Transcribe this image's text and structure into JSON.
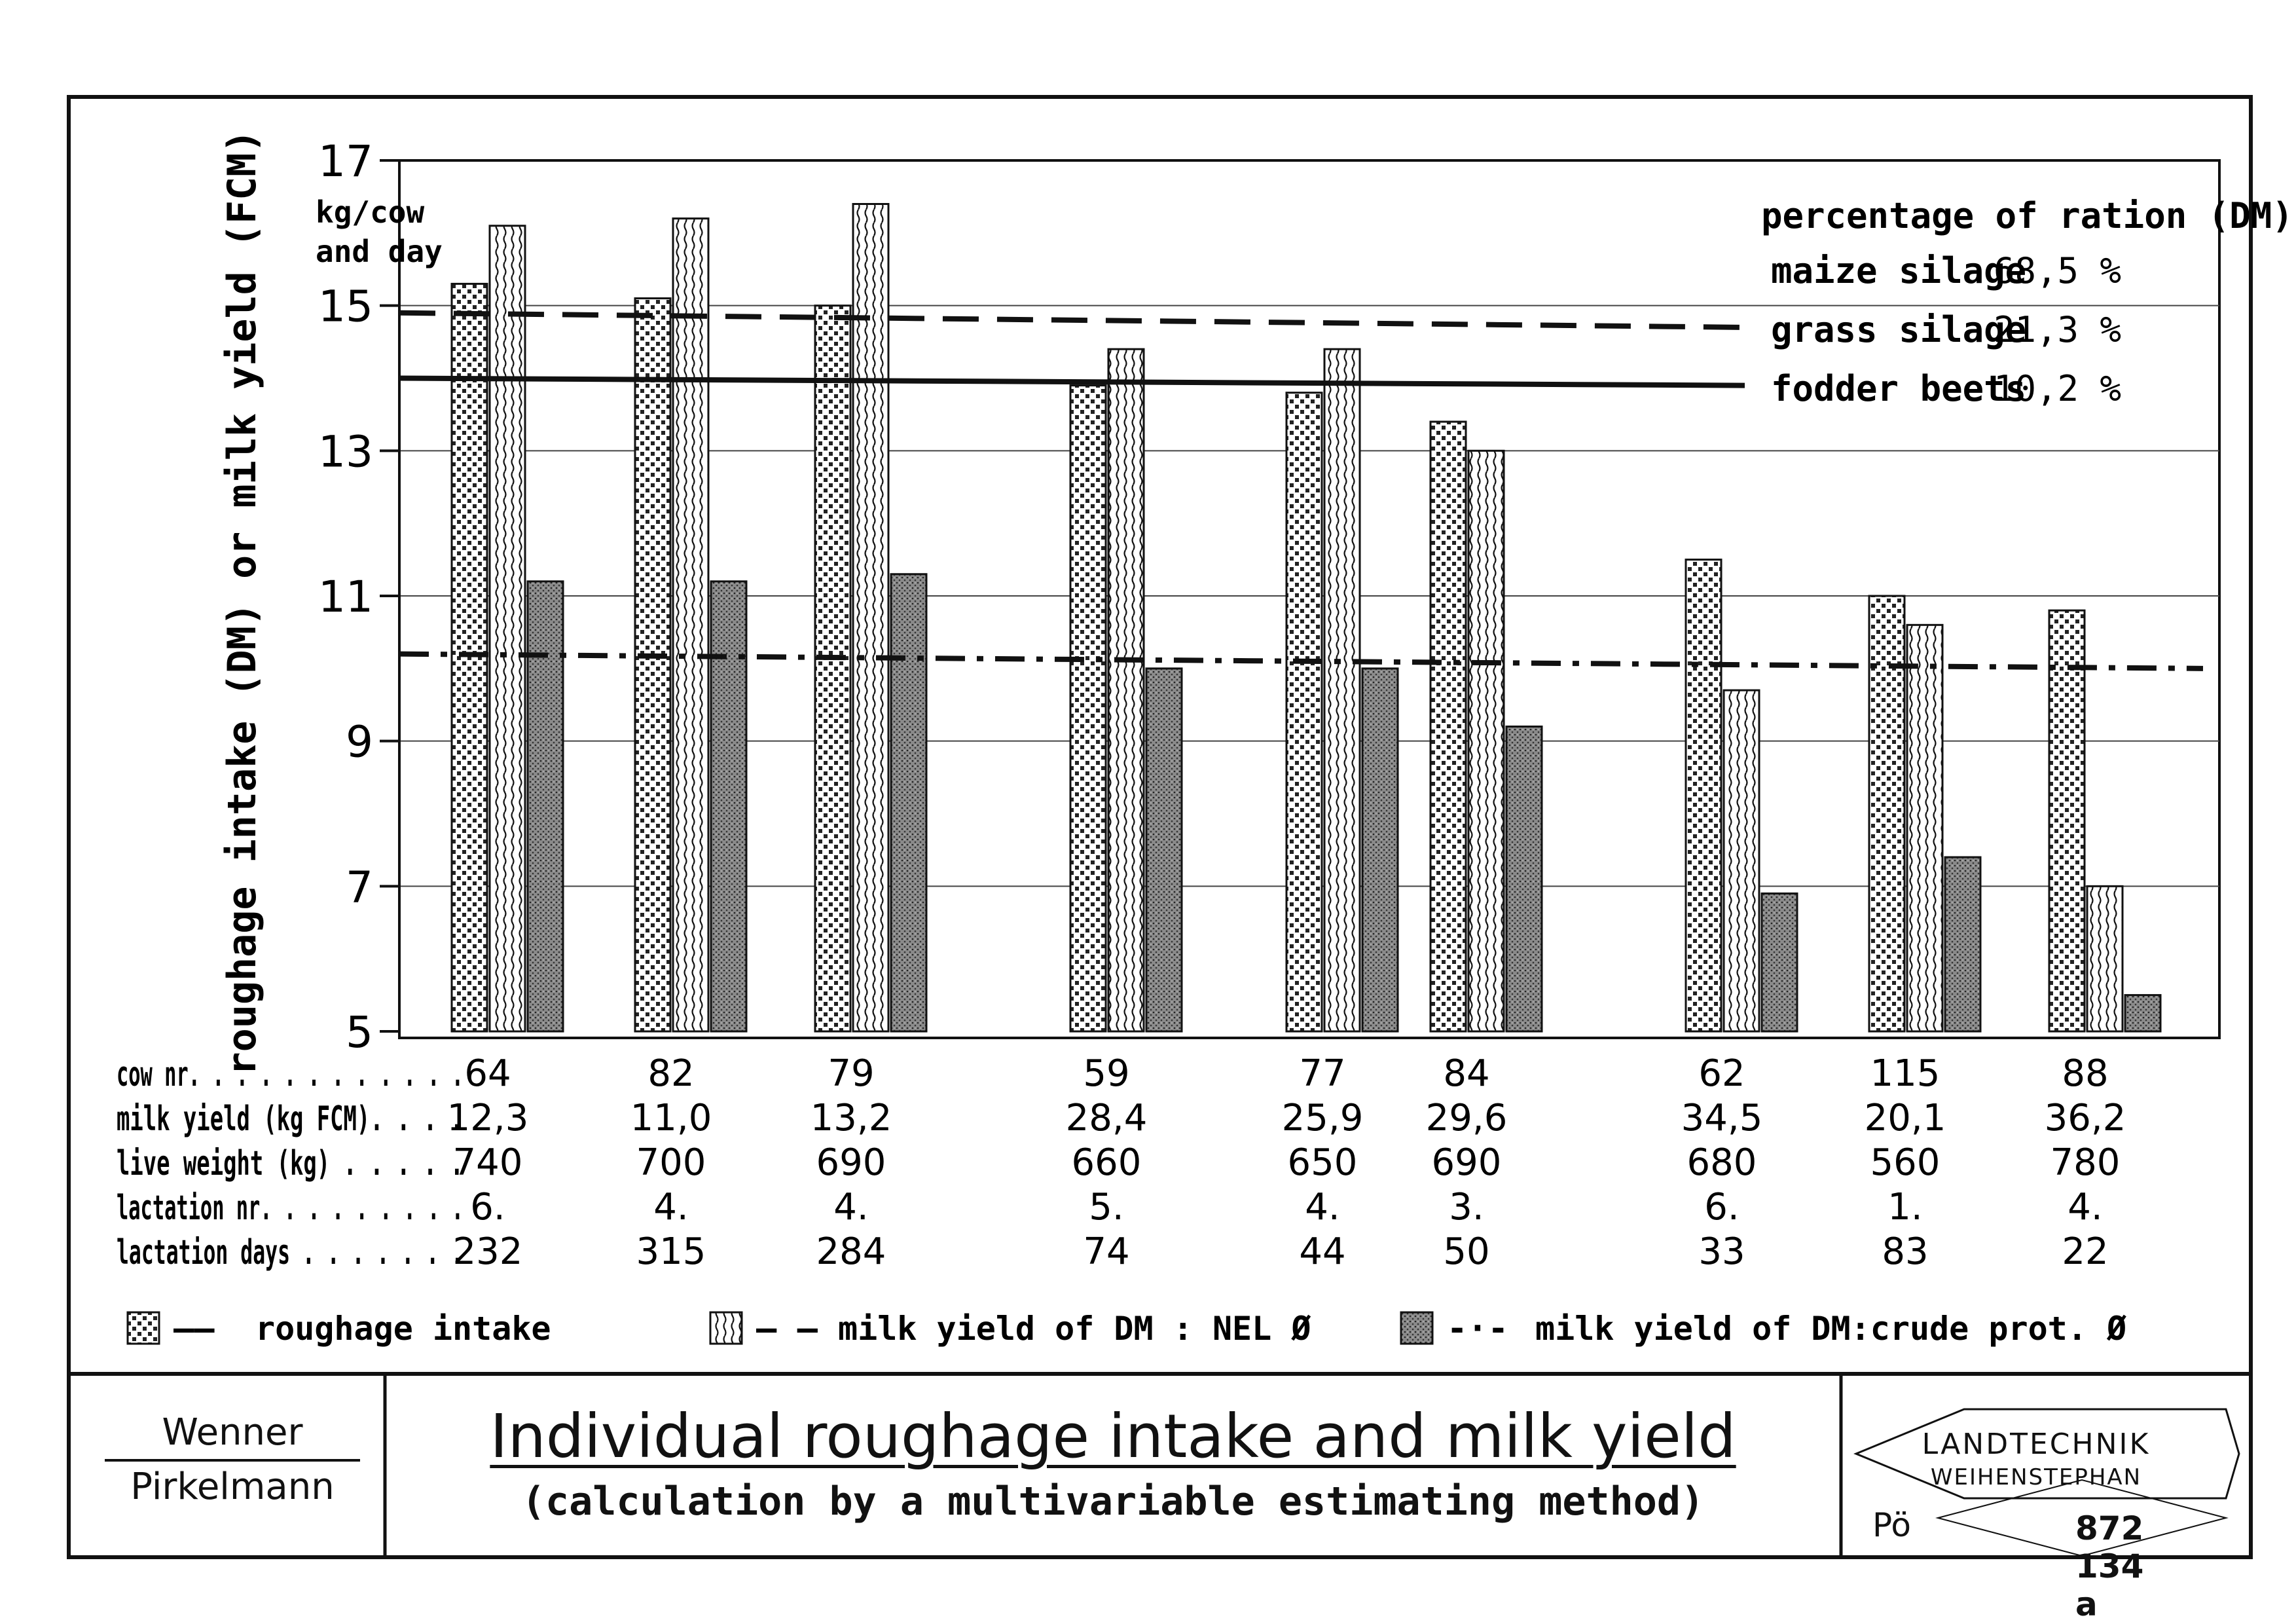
{
  "chart_data": {
    "type": "bar",
    "ylabel": "roughage intake (DM) or milk yield (FCM)",
    "ylim": [
      5,
      17
    ],
    "yticks": [
      5,
      7,
      9,
      11,
      13,
      15,
      17
    ],
    "unit": "kg/cow and day",
    "categories": [
      "64",
      "82",
      "79",
      "59",
      "77",
      "84",
      "62",
      "115",
      "88"
    ],
    "series": [
      {
        "name": "roughage intake",
        "pattern": "dots",
        "values": [
          15.3,
          15.1,
          15.0,
          13.9,
          13.8,
          13.4,
          11.5,
          11.0,
          10.8
        ]
      },
      {
        "name": "milk yield of DM : NEL Ø",
        "pattern": "waves",
        "values": [
          16.1,
          16.2,
          16.4,
          14.4,
          14.4,
          13.0,
          9.7,
          10.6,
          7.0
        ]
      },
      {
        "name": "milk yield of DM:crude prot. Ø",
        "pattern": "stipple",
        "values": [
          11.2,
          11.2,
          11.3,
          10.0,
          10.0,
          9.2,
          6.9,
          7.4,
          5.5
        ]
      }
    ],
    "reference_lines": [
      {
        "name": "roughage intake",
        "style": "solid",
        "y_start": 14.0,
        "y_end": 13.9
      },
      {
        "name": "milk yield of DM : NEL Ø",
        "style": "dashed",
        "y_start": 14.9,
        "y_end": 14.7
      },
      {
        "name": "milk yield of DM:crude prot. Ø",
        "style": "dash-dot",
        "y_start": 10.2,
        "y_end": 10.0
      }
    ],
    "legend_marker": "——",
    "legend_markers": [
      "— —",
      "-·-"
    ],
    "ration": {
      "title": "percentage of ration (DM)",
      "items": [
        {
          "label": "maize silage",
          "value": "68,5 %"
        },
        {
          "label": "grass silage",
          "value": "21,3 %"
        },
        {
          "label": "fodder beets",
          "value": "10,2 %"
        }
      ]
    },
    "table": {
      "rows": [
        {
          "label": "cow nr. . . . . . . . . . . .",
          "values": [
            "64",
            "82",
            "79",
            "59",
            "77",
            "84",
            "62",
            "115",
            "88"
          ]
        },
        {
          "label": "milk yield (kg FCM). . . .",
          "values": [
            "12,3",
            "11,0",
            "13,2",
            "28,4",
            "25,9",
            "29,6",
            "34,5",
            "20,1",
            "36,2"
          ]
        },
        {
          "label": "live weight (kg) . . . . .",
          "values": [
            "740",
            "700",
            "690",
            "660",
            "650",
            "690",
            "680",
            "560",
            "780"
          ]
        },
        {
          "label": "lactation nr. . . . . . . . .",
          "values": [
            "6.",
            "4.",
            "4.",
            "5.",
            "4.",
            "3.",
            "6.",
            "1.",
            "4."
          ]
        },
        {
          "label": "lactation days . . . . . . .",
          "values": [
            "232",
            "315",
            "284",
            "74",
            "44",
            "50",
            "33",
            "83",
            "22"
          ]
        }
      ]
    }
  },
  "footer": {
    "author_1": "Wenner",
    "author_2": "Pirkelmann",
    "title": "Individual roughage intake and milk yield",
    "subtitle": "(calculation by a multivariable estimating method)",
    "logo_line_1": "LANDTECHNIK",
    "logo_line_2": "WEIHENSTEPHAN",
    "code_left": "Pö",
    "code_right": "872 134 a"
  }
}
